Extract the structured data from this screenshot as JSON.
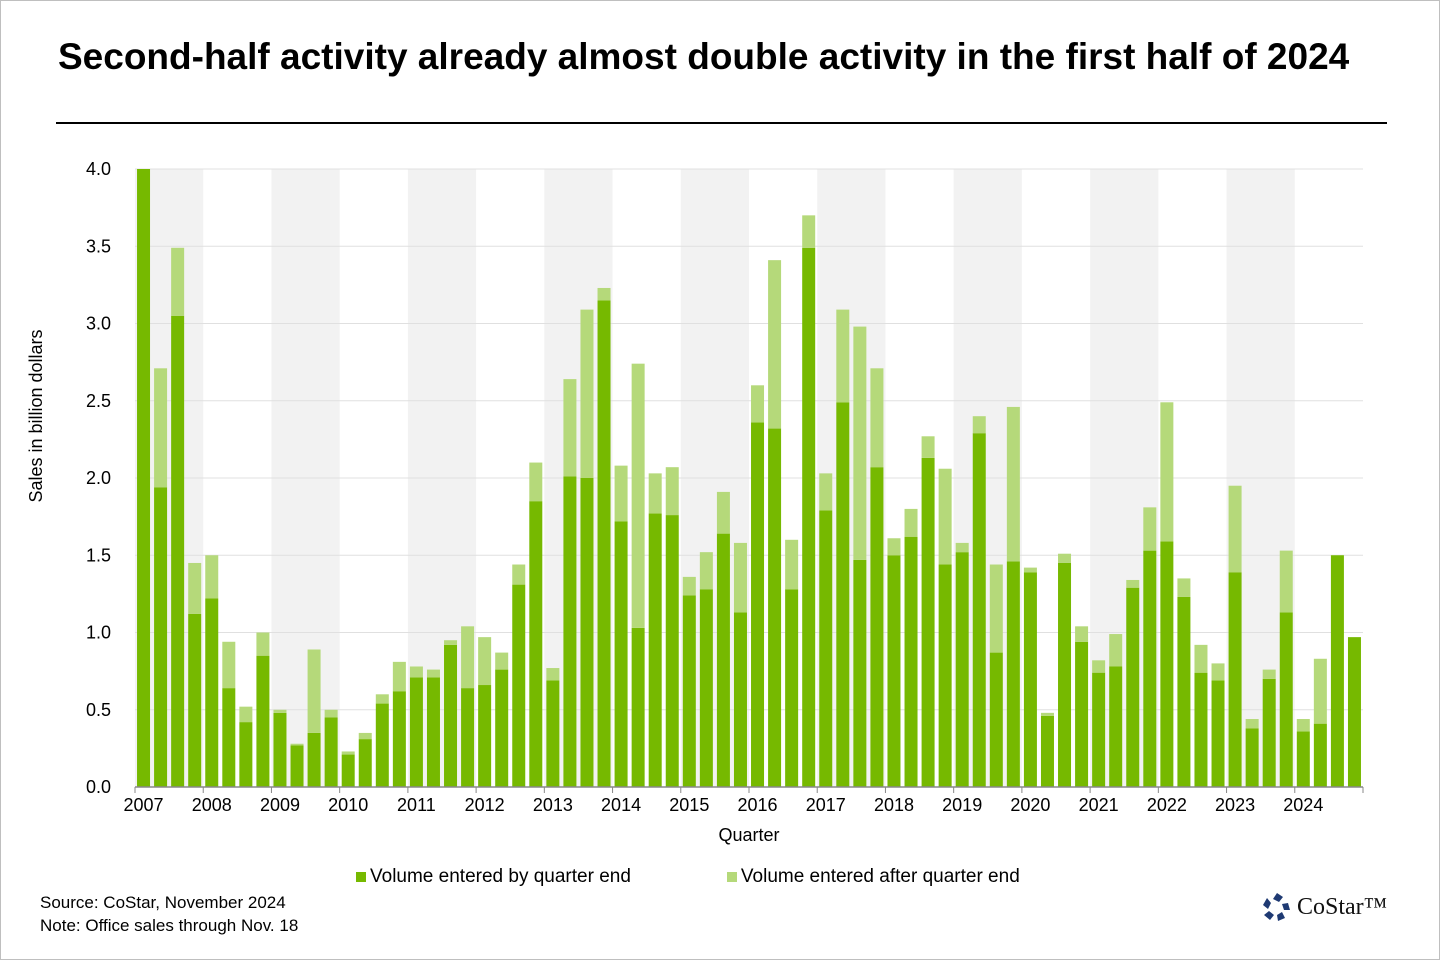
{
  "chart_data": {
    "type": "bar",
    "stacked": true,
    "title": "Second-half activity already almost double activity in the first half of 2024",
    "xlabel": "Quarter",
    "ylabel": "Sales in billion dollars",
    "ylim": [
      0,
      4.0
    ],
    "yticks": [
      "0.0",
      "0.5",
      "1.0",
      "1.5",
      "2.0",
      "2.5",
      "3.0",
      "3.5",
      "4.0"
    ],
    "xtick_labels": [
      "2007",
      "2008",
      "2009",
      "2010",
      "2011",
      "2012",
      "2013",
      "2014",
      "2015",
      "2016",
      "2017",
      "2018",
      "2019",
      "2020",
      "2021",
      "2022",
      "2023",
      "2024"
    ],
    "grid": true,
    "legend_placement": "bottom",
    "colors": {
      "by_quarter_end": "#76b900",
      "after_quarter_end": "#b5d97a",
      "alt_year_band": "#f2f2f2"
    },
    "categories": [
      "2007 Q1",
      "2007 Q2",
      "2007 Q3",
      "2007 Q4",
      "2008 Q1",
      "2008 Q2",
      "2008 Q3",
      "2008 Q4",
      "2009 Q1",
      "2009 Q2",
      "2009 Q3",
      "2009 Q4",
      "2010 Q1",
      "2010 Q2",
      "2010 Q3",
      "2010 Q4",
      "2011 Q1",
      "2011 Q2",
      "2011 Q3",
      "2011 Q4",
      "2012 Q1",
      "2012 Q2",
      "2012 Q3",
      "2012 Q4",
      "2013 Q1",
      "2013 Q2",
      "2013 Q3",
      "2013 Q4",
      "2014 Q1",
      "2014 Q2",
      "2014 Q3",
      "2014 Q4",
      "2015 Q1",
      "2015 Q2",
      "2015 Q3",
      "2015 Q4",
      "2016 Q1",
      "2016 Q2",
      "2016 Q3",
      "2016 Q4",
      "2017 Q1",
      "2017 Q2",
      "2017 Q3",
      "2017 Q4",
      "2018 Q1",
      "2018 Q2",
      "2018 Q3",
      "2018 Q4",
      "2019 Q1",
      "2019 Q2",
      "2019 Q3",
      "2019 Q4",
      "2020 Q1",
      "2020 Q2",
      "2020 Q3",
      "2020 Q4",
      "2021 Q1",
      "2021 Q2",
      "2021 Q3",
      "2021 Q4",
      "2022 Q1",
      "2022 Q2",
      "2022 Q3",
      "2022 Q4",
      "2023 Q1",
      "2023 Q2",
      "2023 Q3",
      "2023 Q4",
      "2024 Q1",
      "2024 Q2",
      "2024 Q3",
      "2024 Q4"
    ],
    "series": [
      {
        "name": "Volume entered by quarter end",
        "values": [
          4.0,
          1.94,
          3.05,
          1.12,
          1.22,
          0.64,
          0.42,
          0.85,
          0.48,
          0.27,
          0.35,
          0.45,
          0.21,
          0.31,
          0.54,
          0.62,
          0.71,
          0.71,
          0.92,
          0.64,
          0.66,
          0.76,
          1.31,
          1.85,
          0.69,
          2.01,
          2.0,
          3.15,
          1.72,
          1.03,
          1.77,
          1.76,
          1.24,
          1.28,
          1.64,
          1.13,
          2.36,
          2.32,
          1.28,
          3.49,
          1.79,
          2.49,
          1.47,
          2.07,
          1.5,
          1.62,
          2.13,
          1.44,
          1.52,
          2.29,
          0.87,
          1.46,
          1.39,
          0.46,
          1.45,
          0.94,
          0.74,
          0.78,
          1.29,
          1.53,
          1.59,
          1.23,
          0.74,
          0.69,
          1.39,
          0.38,
          0.7,
          1.13,
          0.36,
          0.41,
          1.5,
          0.97
        ]
      },
      {
        "name": "Volume entered after quarter end",
        "values": [
          0.0,
          0.77,
          0.44,
          0.33,
          0.28,
          0.3,
          0.1,
          0.15,
          0.02,
          0.01,
          0.54,
          0.05,
          0.02,
          0.04,
          0.06,
          0.19,
          0.07,
          0.05,
          0.03,
          0.4,
          0.31,
          0.11,
          0.13,
          0.25,
          0.08,
          0.63,
          1.09,
          0.08,
          0.36,
          1.71,
          0.26,
          0.31,
          0.12,
          0.24,
          0.27,
          0.45,
          0.24,
          1.09,
          0.32,
          0.21,
          0.24,
          0.6,
          1.51,
          0.64,
          0.11,
          0.18,
          0.14,
          0.62,
          0.06,
          0.11,
          0.57,
          1.0,
          0.03,
          0.02,
          0.06,
          0.1,
          0.08,
          0.21,
          0.05,
          0.28,
          0.9,
          0.12,
          0.18,
          0.11,
          0.56,
          0.06,
          0.06,
          0.4,
          0.08,
          0.42,
          0.0,
          0.0
        ]
      }
    ]
  },
  "notes": {
    "source": "Source: CoStar, November 2024",
    "note": "Note: Office sales through Nov. 18"
  },
  "logo": {
    "text": "CoStar™"
  }
}
